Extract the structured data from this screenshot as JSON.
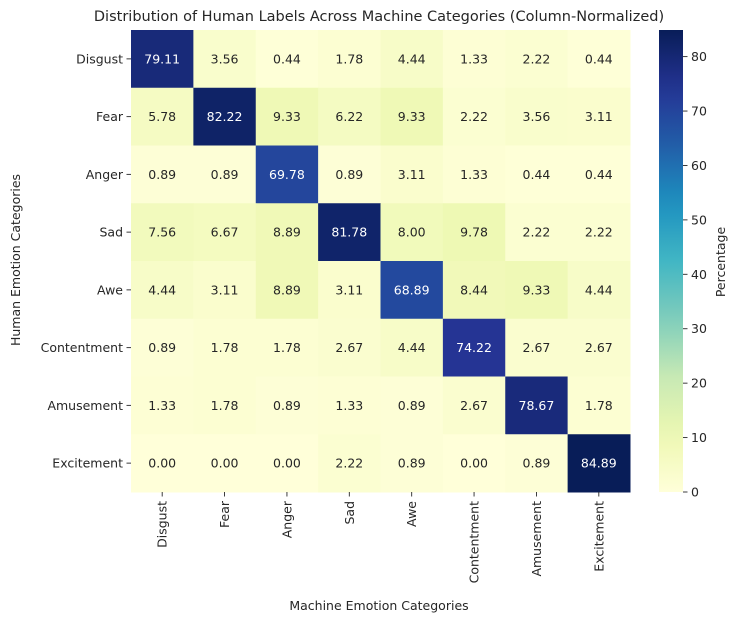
{
  "chart_data": {
    "type": "heatmap",
    "title": "Distribution of Human Labels Across Machine Categories (Column-Normalized)",
    "xlabel": "Machine Emotion Categories",
    "ylabel": "Human Emotion Categories",
    "x_categories": [
      "Disgust",
      "Fear",
      "Anger",
      "Sad",
      "Awe",
      "Contentment",
      "Amusement",
      "Excitement"
    ],
    "y_categories": [
      "Disgust",
      "Fear",
      "Anger",
      "Sad",
      "Awe",
      "Contentment",
      "Amusement",
      "Excitement"
    ],
    "values": [
      [
        79.11,
        3.56,
        0.44,
        1.78,
        4.44,
        1.33,
        2.22,
        0.44
      ],
      [
        5.78,
        82.22,
        9.33,
        6.22,
        9.33,
        2.22,
        3.56,
        3.11
      ],
      [
        0.89,
        0.89,
        69.78,
        0.89,
        3.11,
        1.33,
        0.44,
        0.44
      ],
      [
        7.56,
        6.67,
        8.89,
        81.78,
        8.0,
        9.78,
        2.22,
        2.22
      ],
      [
        4.44,
        3.11,
        8.89,
        3.11,
        68.89,
        8.44,
        9.33,
        4.44
      ],
      [
        0.89,
        1.78,
        1.78,
        2.67,
        4.44,
        74.22,
        2.67,
        2.67
      ],
      [
        1.33,
        1.78,
        0.89,
        1.33,
        0.89,
        2.67,
        78.67,
        1.78
      ],
      [
        0.0,
        0.0,
        0.0,
        2.22,
        0.89,
        0.0,
        0.89,
        84.89
      ]
    ],
    "value_format_decimals": 2,
    "colormap": "YlGnBu",
    "colorbar": {
      "label": "Percentage",
      "range": [
        0,
        84.89
      ],
      "ticks": [
        0,
        10,
        20,
        30,
        40,
        50,
        60,
        70,
        80
      ]
    }
  }
}
